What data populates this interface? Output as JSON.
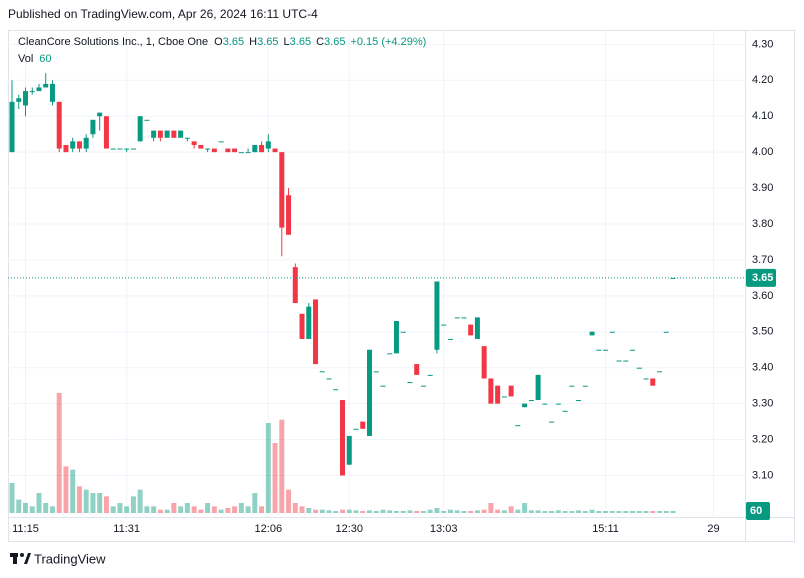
{
  "header": {
    "published": "Published on TradingView.com, Apr 26, 2024 16:11 UTC-4"
  },
  "footer": {
    "brand": "TradingView"
  },
  "chart_data": {
    "type": "candlestick",
    "title": "CleanCore Solutions Inc., 1, Cboe One",
    "legend_keys": [
      "O",
      "H",
      "L",
      "C"
    ],
    "change_label": "+0.15 (+4.29%)",
    "volume_label": "Vol",
    "up_color": "#089981",
    "down_color": "#f23645",
    "grid": true,
    "ylim": [
      2.99,
      4.34
    ],
    "yticks": [
      {
        "value": 3.1,
        "label": "3.10"
      },
      {
        "value": 3.2,
        "label": "3.20"
      },
      {
        "value": 3.3,
        "label": "3.30"
      },
      {
        "value": 3.4,
        "label": "3.40"
      },
      {
        "value": 3.5,
        "label": "3.50"
      },
      {
        "value": 3.6,
        "label": "3.60"
      },
      {
        "value": 3.7,
        "label": "3.70"
      },
      {
        "value": 3.8,
        "label": "3.80"
      },
      {
        "value": 3.9,
        "label": "3.90"
      },
      {
        "value": 4.0,
        "label": "4.00"
      },
      {
        "value": 4.1,
        "label": "4.10"
      },
      {
        "value": 4.2,
        "label": "4.20"
      },
      {
        "value": 4.3,
        "label": "4.30"
      }
    ],
    "volume_lim": [
      0,
      3600
    ],
    "categories": [
      null,
      null,
      "11:15",
      null,
      null,
      null,
      null,
      null,
      null,
      null,
      null,
      null,
      null,
      null,
      null,
      null,
      null,
      "11:31",
      null,
      null,
      null,
      null,
      null,
      null,
      null,
      null,
      null,
      null,
      null,
      null,
      null,
      null,
      null,
      null,
      null,
      null,
      null,
      null,
      "12:06",
      null,
      null,
      null,
      null,
      null,
      null,
      null,
      null,
      null,
      null,
      null,
      "12:30",
      null,
      null,
      null,
      null,
      null,
      null,
      null,
      null,
      null,
      null,
      null,
      null,
      null,
      "13:03",
      null,
      null,
      null,
      null,
      null,
      null,
      null,
      null,
      null,
      null,
      null,
      null,
      null,
      null,
      null,
      null,
      null,
      null,
      null,
      null,
      null,
      null,
      null,
      "15:11",
      null,
      null,
      null,
      null,
      null,
      null,
      null,
      null,
      null,
      null,
      null,
      null,
      null,
      null,
      null,
      "29"
    ],
    "open": [
      4.0,
      4.14,
      4.13,
      4.17,
      4.17,
      4.18,
      4.14,
      4.14,
      4.02,
      4.01,
      4.03,
      4.01,
      4.05,
      4.1,
      4.1,
      4.01,
      4.01,
      4.01,
      4.01,
      4.03,
      4.09,
      4.04,
      4.06,
      4.04,
      4.06,
      4.04,
      4.04,
      4.03,
      4.02,
      4.01,
      4.01,
      4.03,
      4.01,
      4.01,
      4.0,
      4.0,
      4.0,
      4.02,
      4.01,
      4.01,
      4.0,
      3.88,
      3.68,
      3.55,
      3.48,
      3.59,
      3.39,
      3.37,
      3.34,
      3.31,
      3.13,
      3.23,
      3.25,
      3.21,
      3.39,
      3.35,
      3.44,
      3.44,
      3.5,
      3.36,
      3.41,
      3.35,
      3.38,
      3.45,
      3.52,
      3.48,
      3.54,
      3.54,
      3.52,
      3.48,
      3.46,
      3.37,
      3.35,
      3.32,
      3.35,
      3.24,
      3.29,
      3.31,
      3.31,
      3.3,
      3.25,
      3.3,
      3.28,
      3.35,
      3.31,
      3.35,
      3.49,
      3.45,
      3.45,
      3.5,
      3.42,
      3.42,
      3.45,
      3.4,
      3.37,
      3.37,
      3.39,
      3.5,
      3.65,
      null,
      null,
      null,
      null,
      null,
      null
    ],
    "high": [
      4.2,
      4.16,
      4.18,
      4.18,
      4.19,
      4.22,
      4.2,
      4.14,
      4.02,
      4.04,
      4.03,
      4.05,
      4.09,
      4.11,
      4.1,
      4.01,
      4.01,
      4.01,
      4.01,
      4.1,
      4.09,
      4.06,
      4.06,
      4.06,
      4.06,
      4.06,
      4.04,
      4.03,
      4.02,
      4.01,
      4.01,
      4.03,
      4.01,
      4.01,
      4.0,
      4.01,
      4.02,
      4.03,
      4.05,
      4.01,
      4.0,
      3.9,
      3.69,
      3.55,
      3.58,
      3.59,
      3.39,
      3.37,
      3.34,
      3.31,
      3.21,
      3.23,
      3.25,
      3.45,
      3.39,
      3.35,
      3.44,
      3.53,
      3.5,
      3.36,
      3.41,
      3.35,
      3.38,
      3.64,
      3.52,
      3.48,
      3.54,
      3.54,
      3.52,
      3.54,
      3.46,
      3.37,
      3.35,
      3.32,
      3.35,
      3.24,
      3.3,
      3.31,
      3.38,
      3.3,
      3.25,
      3.3,
      3.28,
      3.35,
      3.31,
      3.35,
      3.5,
      3.45,
      3.45,
      3.5,
      3.42,
      3.42,
      3.45,
      3.4,
      3.37,
      3.37,
      3.39,
      3.5,
      3.65,
      null,
      null,
      null,
      null,
      null,
      null
    ],
    "low": [
      4.0,
      4.12,
      4.1,
      4.16,
      4.17,
      4.18,
      4.13,
      4.0,
      4.0,
      4.0,
      4.0,
      4.0,
      4.04,
      4.06,
      4.01,
      4.01,
      4.01,
      4.0,
      4.01,
      4.03,
      4.09,
      4.03,
      4.03,
      4.04,
      4.04,
      4.04,
      4.03,
      4.01,
      4.01,
      4.0,
      4.0,
      4.03,
      4.0,
      4.0,
      4.0,
      4.0,
      4.0,
      4.0,
      4.0,
      4.0,
      3.71,
      3.77,
      3.58,
      3.48,
      3.48,
      3.41,
      3.39,
      3.37,
      3.34,
      3.1,
      3.13,
      3.23,
      3.23,
      3.21,
      3.39,
      3.35,
      3.44,
      3.44,
      3.5,
      3.36,
      3.38,
      3.35,
      3.38,
      3.44,
      3.52,
      3.48,
      3.54,
      3.54,
      3.49,
      3.48,
      3.37,
      3.3,
      3.3,
      3.32,
      3.32,
      3.24,
      3.29,
      3.31,
      3.31,
      3.3,
      3.25,
      3.3,
      3.28,
      3.35,
      3.31,
      3.35,
      3.49,
      3.45,
      3.45,
      3.5,
      3.42,
      3.42,
      3.45,
      3.4,
      3.37,
      3.35,
      3.39,
      3.5,
      3.65,
      null,
      null,
      null,
      null,
      null,
      null
    ],
    "close": [
      4.14,
      4.15,
      4.17,
      4.17,
      4.18,
      4.19,
      4.19,
      4.01,
      4.0,
      4.03,
      4.01,
      4.04,
      4.09,
      4.11,
      4.01,
      4.01,
      4.01,
      4.01,
      4.01,
      4.1,
      4.09,
      4.06,
      4.04,
      4.06,
      4.04,
      4.06,
      4.04,
      4.02,
      4.01,
      4.01,
      4.0,
      4.03,
      4.0,
      4.0,
      4.0,
      4.0,
      4.02,
      4.0,
      4.03,
      4.0,
      3.79,
      3.77,
      3.58,
      3.48,
      3.57,
      3.41,
      3.39,
      3.37,
      3.34,
      3.1,
      3.21,
      3.23,
      3.23,
      3.45,
      3.39,
      3.35,
      3.44,
      3.53,
      3.5,
      3.36,
      3.38,
      3.35,
      3.38,
      3.64,
      3.52,
      3.48,
      3.54,
      3.54,
      3.49,
      3.54,
      3.37,
      3.3,
      3.3,
      3.32,
      3.32,
      3.24,
      3.3,
      3.31,
      3.38,
      3.3,
      3.25,
      3.3,
      3.28,
      3.35,
      3.31,
      3.35,
      3.5,
      3.45,
      3.45,
      3.5,
      3.42,
      3.42,
      3.45,
      3.4,
      3.37,
      3.35,
      3.39,
      3.5,
      3.65,
      null,
      null,
      null,
      null,
      null,
      null
    ],
    "volume": [
      900,
      400,
      300,
      200,
      600,
      300,
      200,
      3600,
      1400,
      1300,
      800,
      700,
      600,
      600,
      500,
      200,
      300,
      200,
      500,
      700,
      200,
      200,
      100,
      100,
      300,
      200,
      300,
      200,
      100,
      300,
      200,
      100,
      150,
      200,
      300,
      200,
      600,
      200,
      2700,
      2100,
      2800,
      700,
      300,
      200,
      150,
      100,
      100,
      80,
      60,
      100,
      100,
      80,
      60,
      80,
      60,
      100,
      80,
      60,
      60,
      80,
      60,
      60,
      100,
      150,
      60,
      100,
      80,
      60,
      60,
      80,
      100,
      300,
      100,
      80,
      200,
      100,
      300,
      80,
      80,
      60,
      60,
      80,
      60,
      60,
      80,
      60,
      100,
      60,
      60,
      60,
      60,
      60,
      60,
      60,
      60,
      60,
      60,
      60,
      60,
      null,
      null,
      null,
      null,
      null,
      null
    ]
  }
}
